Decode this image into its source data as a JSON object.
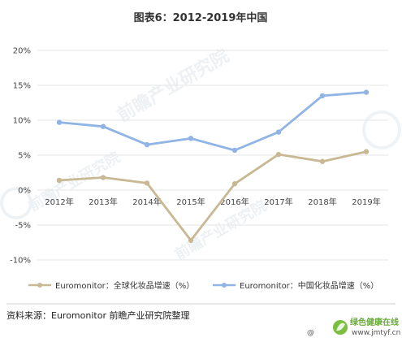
{
  "chart_data": {
    "type": "line",
    "title": "图表6：2012-2019年中国",
    "categories": [
      "2012年",
      "2013年",
      "2014年",
      "2015年",
      "2016年",
      "2017年",
      "2018年",
      "2019年"
    ],
    "y_ticks": [
      "20%",
      "15%",
      "10%",
      "5%",
      "0%",
      "-5%",
      "-10%"
    ],
    "ylim": [
      -10,
      20
    ],
    "y_step": 5,
    "grid": true,
    "legend_position": "bottom",
    "series": [
      {
        "name": "Euromonitor：全球化妆品增速（%）",
        "color": "#c8b994",
        "values": [
          1.4,
          1.8,
          1.0,
          -7.2,
          0.9,
          5.1,
          4.1,
          5.5
        ]
      },
      {
        "name": "Euromonitor：中国化妆品增速（%）",
        "color": "#8fb4e5",
        "values": [
          9.7,
          9.1,
          6.5,
          7.4,
          5.7,
          8.3,
          13.5,
          14.0
        ]
      }
    ]
  },
  "source_note": "资料来源：Euromonitor 前瞻产业研究院整理",
  "badge": {
    "brand_text": "绿色健康在线",
    "url_text": "www.jmtyf.cn",
    "at_symbol": "@",
    "brand_color": "#6aaa3a"
  }
}
